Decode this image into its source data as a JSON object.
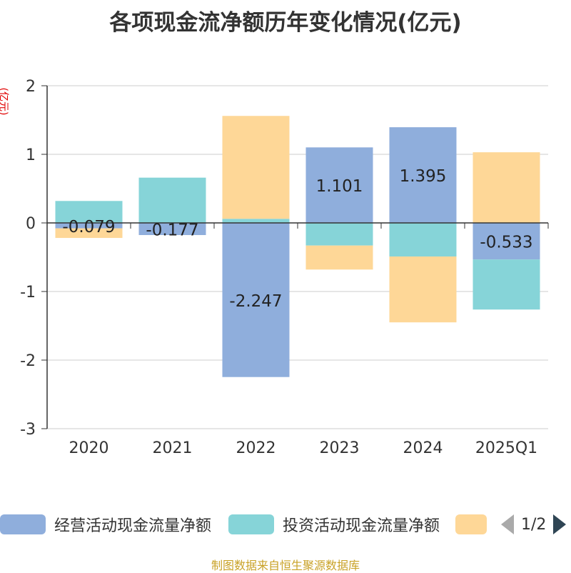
{
  "title": "各项现金流净额历年变化情况(亿元)",
  "source": "制图数据来自恒生聚源数据库",
  "pager": "1/2",
  "colors": {
    "operating": "#8faedc",
    "investing": "#86d4d8",
    "financing": "#fed797",
    "axis": "#333333",
    "grid": "#cccccc"
  },
  "chart_data": {
    "type": "bar",
    "stacked": true,
    "ylabel": "(亿元)",
    "ylim": [
      -3,
      2
    ],
    "yticks": [
      2,
      1,
      0,
      -1,
      -2,
      -3
    ],
    "categories": [
      "2020",
      "2021",
      "2022",
      "2023",
      "2024",
      "2025Q1"
    ],
    "series": [
      {
        "name": "经营活动现金流量净额",
        "values": [
          -0.079,
          -0.177,
          -2.247,
          1.101,
          1.395,
          -0.533
        ],
        "labels": [
          "-0.079",
          "-0.177",
          "-2.247",
          "1.101",
          "1.395",
          "-0.533"
        ]
      },
      {
        "name": "投资活动现金流量净额",
        "values": [
          0.32,
          0.66,
          0.06,
          -0.33,
          -0.49,
          -0.73
        ]
      },
      {
        "name": "",
        "values": [
          -0.14,
          0.0,
          1.5,
          -0.35,
          -0.96,
          1.03
        ]
      }
    ],
    "grid": true,
    "legend": "bottom"
  }
}
